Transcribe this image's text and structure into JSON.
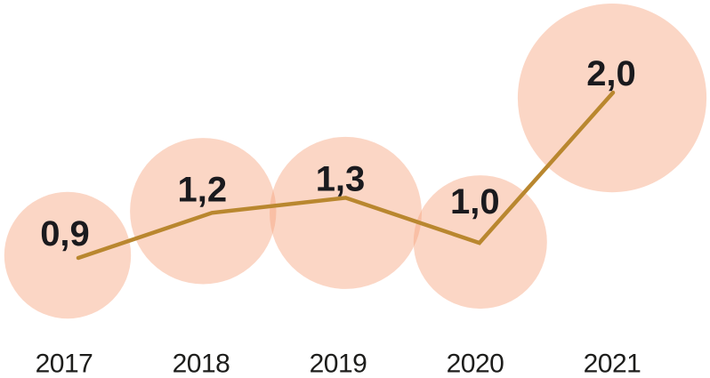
{
  "chart_data": {
    "type": "line",
    "subtype": "line-with-proportional-bubble-markers",
    "categories": [
      "2017",
      "2018",
      "2019",
      "2020",
      "2021"
    ],
    "values": [
      0.9,
      1.2,
      1.3,
      1.0,
      2.0
    ],
    "point_labels": [
      "0,9",
      "1,2",
      "1,3",
      "1,0",
      "2,0"
    ],
    "decimal_separator": ",",
    "grid": false,
    "legend": false,
    "axes_visible": false,
    "value_range_shown": [
      0.9,
      2.0
    ],
    "bubble_sizing": "area-proportional-to-value",
    "colors": {
      "background": "#FFFFFF",
      "bubble_fill": "#F7A57E",
      "bubble_opacity": 0.45,
      "line": "#B9872F",
      "value_label": "#1A1A1E",
      "year_label": "#1D1D1B"
    }
  }
}
